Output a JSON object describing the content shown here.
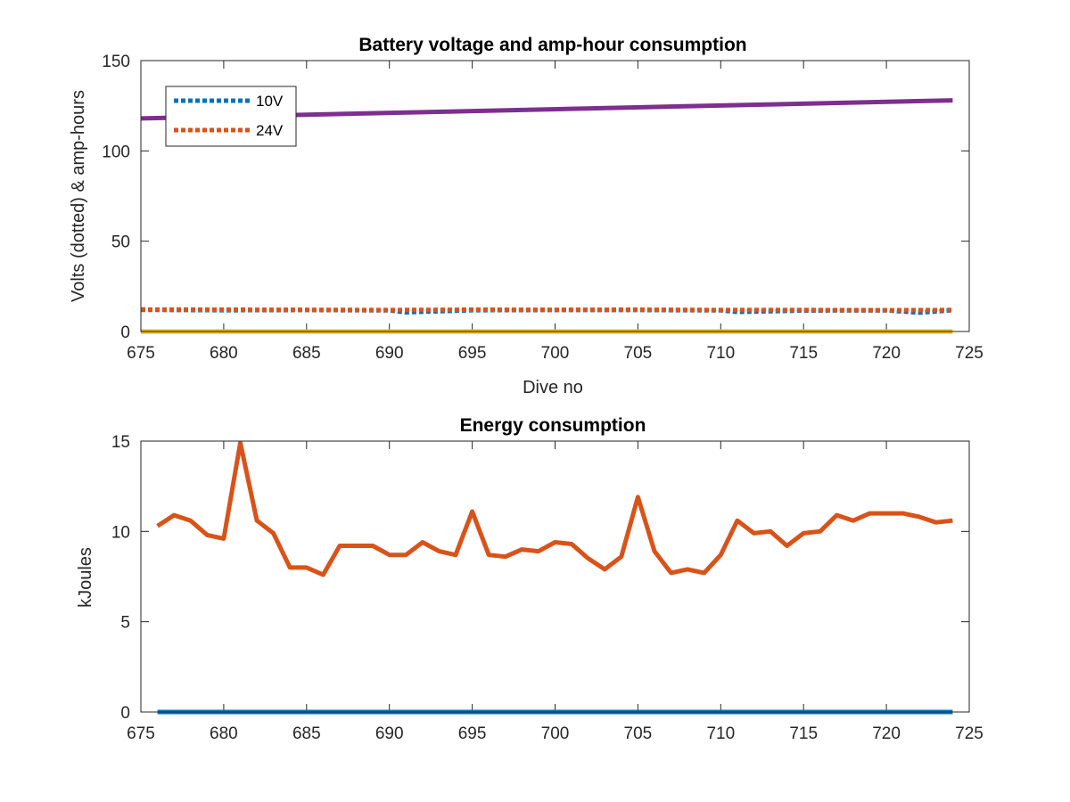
{
  "chart_data": [
    {
      "type": "line",
      "title": "Battery voltage and amp-hour consumption",
      "xlabel": "Dive no",
      "ylabel": "Volts (dotted) & amp-hours",
      "xlim": [
        675,
        725
      ],
      "ylim": [
        0,
        150
      ],
      "xticks": [
        675,
        680,
        685,
        690,
        695,
        700,
        705,
        710,
        715,
        720,
        725
      ],
      "yticks": [
        0,
        50,
        100,
        150
      ],
      "grid": false,
      "legend": {
        "placement": "top-left",
        "entries": [
          "10V",
          "24V"
        ]
      },
      "series": [
        {
          "name": "10V",
          "style": "dotted",
          "color": "#0072BD",
          "x": [
            675,
            680,
            685,
            690,
            691,
            695,
            700,
            705,
            710,
            711,
            715,
            720,
            722,
            724
          ],
          "y": [
            12,
            11.8,
            11.9,
            11.7,
            10.6,
            11.8,
            11.9,
            11.9,
            11.7,
            10.8,
            11.6,
            11.7,
            10.4,
            11.8
          ]
        },
        {
          "name": "24V",
          "style": "dotted",
          "color": "#D95319",
          "x": [
            675,
            680,
            685,
            690,
            695,
            700,
            705,
            710,
            715,
            720,
            724
          ],
          "y": [
            12.2,
            12.1,
            12.0,
            11.9,
            12.1,
            12.0,
            12.1,
            11.9,
            11.9,
            11.8,
            11.9
          ]
        },
        {
          "style": "solid",
          "color": "#7E2F8E",
          "x": [
            675,
            724
          ],
          "y": [
            118,
            128
          ]
        },
        {
          "style": "solid",
          "color": "#EDB120",
          "x": [
            675,
            724
          ],
          "y": [
            0,
            0
          ]
        }
      ]
    },
    {
      "type": "line",
      "title": "Energy consumption",
      "xlabel": "",
      "ylabel": "kJoules",
      "xlim": [
        675,
        725
      ],
      "ylim": [
        0,
        15
      ],
      "xticks": [
        675,
        680,
        685,
        690,
        695,
        700,
        705,
        710,
        715,
        720,
        725
      ],
      "yticks": [
        0,
        5,
        10,
        15
      ],
      "grid": false,
      "series": [
        {
          "style": "solid",
          "color": "#D95319",
          "x": [
            676,
            677,
            678,
            679,
            680,
            681,
            682,
            683,
            684,
            685,
            686,
            687,
            688,
            689,
            690,
            691,
            692,
            693,
            694,
            695,
            696,
            697,
            698,
            699,
            700,
            701,
            702,
            703,
            704,
            705,
            706,
            707,
            708,
            709,
            710,
            711,
            712,
            713,
            714,
            715,
            716,
            717,
            718,
            719,
            720,
            721,
            722,
            723,
            724
          ],
          "y": [
            10.3,
            10.9,
            10.6,
            9.8,
            9.6,
            14.9,
            10.6,
            9.9,
            8.0,
            8.0,
            7.6,
            9.2,
            9.2,
            9.2,
            8.7,
            8.7,
            9.4,
            8.9,
            8.7,
            11.1,
            8.7,
            8.6,
            9.0,
            8.9,
            9.4,
            9.3,
            8.5,
            7.9,
            8.6,
            11.9,
            8.9,
            7.7,
            7.9,
            7.7,
            8.7,
            10.6,
            9.9,
            10.0,
            9.2,
            9.9,
            10.0,
            10.9,
            10.6,
            11.0,
            11.0,
            11.0,
            10.8,
            10.5,
            10.6
          ]
        },
        {
          "style": "solid",
          "color": "#0072BD",
          "x": [
            676,
            724
          ],
          "y": [
            0,
            0
          ]
        }
      ]
    }
  ]
}
